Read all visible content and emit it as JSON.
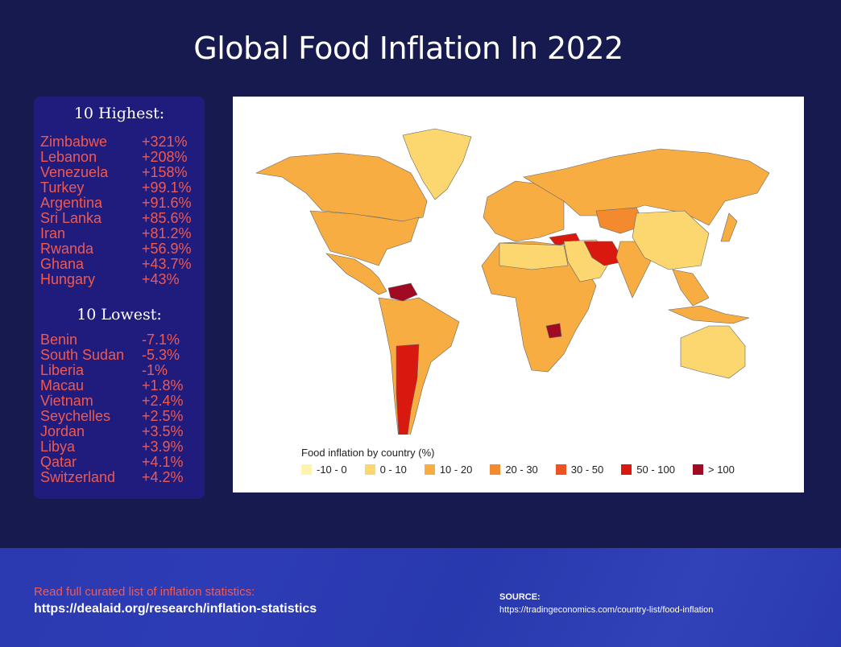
{
  "title": "Global Food Inflation In 2022",
  "highest": {
    "heading": "10 Highest:",
    "items": [
      {
        "country": "Zimbabwe",
        "value": "+321%"
      },
      {
        "country": "Lebanon",
        "value": "+208%"
      },
      {
        "country": "Venezuela",
        "value": "+158%"
      },
      {
        "country": "Turkey",
        "value": "+99.1%"
      },
      {
        "country": "Argentina",
        "value": "+91.6%"
      },
      {
        "country": "Sri Lanka",
        "value": "+85.6%"
      },
      {
        "country": "Iran",
        "value": "+81.2%"
      },
      {
        "country": "Rwanda",
        "value": "+56.9%"
      },
      {
        "country": "Ghana",
        "value": "+43.7%"
      },
      {
        "country": "Hungary",
        "value": "+43%"
      }
    ]
  },
  "lowest": {
    "heading": "10 Lowest:",
    "items": [
      {
        "country": "Benin",
        "value": "-7.1%"
      },
      {
        "country": "South Sudan",
        "value": "-5.3%"
      },
      {
        "country": "Liberia",
        "value": "-1%"
      },
      {
        "country": "Macau",
        "value": "+1.8%"
      },
      {
        "country": "Vietnam",
        "value": "+2.4%"
      },
      {
        "country": "Seychelles",
        "value": "+2.5%"
      },
      {
        "country": "Jordan",
        "value": "+3.5%"
      },
      {
        "country": "Libya",
        "value": "+3.9%"
      },
      {
        "country": "Qatar",
        "value": "+4.1%"
      },
      {
        "country": "Switzerland",
        "value": "+4.2%"
      }
    ]
  },
  "chart_data": {
    "type": "choropleth-map",
    "legend_title": "Food inflation by country (%)",
    "legend_placement": "bottom-left",
    "bins": [
      {
        "label": "-10 - 0",
        "color": "#fff3b0"
      },
      {
        "label": "0 - 10",
        "color": "#fcd66e"
      },
      {
        "label": "10 - 20",
        "color": "#f7ad41"
      },
      {
        "label": "20 - 30",
        "color": "#f48a2e"
      },
      {
        "label": "30 - 50",
        "color": "#ec5222"
      },
      {
        "label": "50 - 100",
        "color": "#d9190f"
      },
      {
        "label": "> 100",
        "color": "#a00a22"
      }
    ]
  },
  "footer": {
    "cta": "Read full curated list of inflation statistics:",
    "cta_link": "https://dealaid.org/research/inflation-statistics",
    "source_label": "SOURCE:",
    "source_link": "https://tradingeconomics.com/country-list/food-inflation"
  }
}
